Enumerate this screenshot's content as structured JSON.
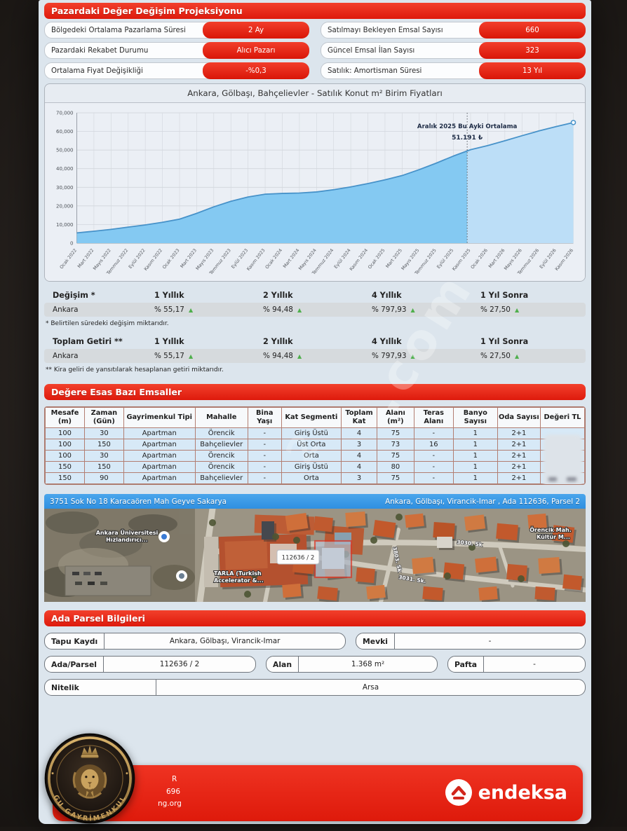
{
  "section1": {
    "title": "Pazardaki Değer Değişim Projeksiyonu",
    "stats": [
      {
        "label": "Bölgedeki Ortalama Pazarlama Süresi",
        "value": "2 Ay"
      },
      {
        "label": "Satılmayı Bekleyen Emsal Sayısı",
        "value": "660"
      },
      {
        "label": "Pazardaki Rekabet Durumu",
        "value": "Alıcı Pazarı"
      },
      {
        "label": "Güncel Emsal İlan Sayısı",
        "value": "323"
      },
      {
        "label": "Ortalama Fiyat Değişikliği",
        "value": "-%0,3"
      },
      {
        "label": "Satılık: Amortisman Süresi",
        "value": "13 Yıl"
      }
    ]
  },
  "chart_data": {
    "type": "area",
    "title": "Ankara, Gölbaşı, Bahçelievler - Satılık Konut m² Birim Fiyatları",
    "x": [
      "Ocak 2022",
      "Mart 2022",
      "Mayıs 2022",
      "Temmuz 2022",
      "Eylül 2022",
      "Kasım 2022",
      "Ocak 2023",
      "Mart 2023",
      "Mayıs 2023",
      "Temmuz 2023",
      "Eylül 2023",
      "Kasım 2023",
      "Ocak 2024",
      "Mart 2024",
      "Mayıs 2024",
      "Temmuz 2024",
      "Eylül 2024",
      "Kasım 2024",
      "Ocak 2025",
      "Mart 2025",
      "Mayıs 2025",
      "Temmuz 2025",
      "Eylül 2025",
      "Kasım 2025",
      "Ocak 2026",
      "Mart 2026",
      "Mayıs 2026",
      "Temmuz 2026",
      "Eylül 2026",
      "Kasım 2026"
    ],
    "values": [
      5500,
      6400,
      7400,
      8600,
      9800,
      11200,
      12900,
      16000,
      19500,
      22500,
      24800,
      26300,
      26700,
      26900,
      27500,
      28700,
      30200,
      32000,
      34000,
      36300,
      39500,
      43000,
      46800,
      50200,
      52400,
      55000,
      57700,
      60300,
      62600,
      64800
    ],
    "ylim": [
      0,
      70000
    ],
    "yticks": [
      0,
      10000,
      20000,
      30000,
      40000,
      50000,
      60000,
      70000
    ],
    "xlabel": "",
    "ylabel": "",
    "grid": true,
    "legend": "none",
    "annotation": {
      "line1": "Aralık 2025 Bu Ayki Ortalama",
      "line2": "51.191 ₺",
      "x_index": 22.8
    },
    "forecast_from_index": 22.8,
    "colors": {
      "line": "#4792c9",
      "area_hist": "#84c9f2",
      "area_forecast": "#bcdef7"
    }
  },
  "change_tables": [
    {
      "header": "Değişim *",
      "columns": [
        "1 Yıllık",
        "2 Yıllık",
        "4 Yıllık",
        "1 Yıl Sonra"
      ],
      "rows": [
        {
          "name": "Ankara",
          "values": [
            "% 55,17",
            "% 94,48",
            "% 797,93",
            "% 27,50"
          ],
          "trend": "up"
        }
      ],
      "footnote": "* Belirtilen süredeki değişim miktarıdır."
    },
    {
      "header": "Toplam Getiri **",
      "columns": [
        "1 Yıllık",
        "2 Yıllık",
        "4 Yıllık",
        "1 Yıl Sonra"
      ],
      "rows": [
        {
          "name": "Ankara",
          "values": [
            "% 55,17",
            "% 94,48",
            "% 797,93",
            "% 27,50"
          ],
          "trend": "up"
        }
      ],
      "footnote": "** Kira geliri de yansıtılarak hesaplanan getiri miktarıdır."
    }
  ],
  "comparables": {
    "title": "Değere Esas Bazı Emsaller",
    "columns": [
      "Mesafe (m)",
      "Zaman (Gün)",
      "Gayrimenkul Tipi",
      "Mahalle",
      "Bina Yaşı",
      "Kat Segmenti",
      "Toplam Kat",
      "Alanı (m²)",
      "Teras Alanı",
      "Banyo Sayısı",
      "Oda Sayısı",
      "Değeri TL"
    ],
    "rows": [
      [
        "100",
        "30",
        "Apartman",
        "Örencik",
        "-",
        "Giriş Üstü",
        "4",
        "75",
        "-",
        "1",
        "2+1",
        ""
      ],
      [
        "100",
        "150",
        "Apartman",
        "Bahçelievler",
        "-",
        "Üst Orta",
        "3",
        "73",
        "16",
        "1",
        "2+1",
        ""
      ],
      [
        "100",
        "30",
        "Apartman",
        "Örencik",
        "-",
        "Orta",
        "4",
        "75",
        "-",
        "1",
        "2+1",
        ""
      ],
      [
        "150",
        "150",
        "Apartman",
        "Örencik",
        "-",
        "Giriş Üstü",
        "4",
        "80",
        "-",
        "1",
        "2+1",
        ""
      ],
      [
        "150",
        "90",
        "Apartman",
        "Bahçelievler",
        "-",
        "Orta",
        "3",
        "75",
        "-",
        "1",
        "2+1",
        ""
      ]
    ],
    "value_column_state": "blurred"
  },
  "map": {
    "address_left": "3751 Sok No 18 Karacaören Mah Geyve Sakarya",
    "address_right": "Ankara, Gölbaşı, Virancik-Imar , Ada 112636, Parsel 2",
    "labels": {
      "uni1": "Ankara Üniversitesi",
      "uni2": "Hızlandırıcı...",
      "tarla1": "TARLA (Turkish",
      "tarla2": "Accelerator &...",
      "district1": "Örencik Mah.",
      "district2": "Kültür M...",
      "street_a": "3030. Sk",
      "street_b": "3031. Sk.",
      "street_c": "3803. Sk",
      "parcel": "112636 / 2"
    }
  },
  "parcel_info": {
    "title": "Ada Parsel Bilgileri",
    "fields": [
      {
        "label": "Tapu Kaydı",
        "value": "Ankara, Gölbaşı, Virancik-Imar"
      },
      {
        "label": "Mevki",
        "value": "-"
      },
      {
        "label": "Ada/Parsel",
        "value": "112636 / 2"
      },
      {
        "label": "Alan",
        "value": "1.368 m²"
      },
      {
        "label": "Pafta",
        "value": "-"
      },
      {
        "label": "Nitelik",
        "value": "Arsa"
      }
    ]
  },
  "footer": {
    "contact_fragments": [
      "R",
      "696",
      "ng.org"
    ],
    "brand": "endeksa"
  },
  "watermark": {
    "diagonal_fragment": ".com",
    "diagonal_fragment2": "2",
    "emblem_text": "GU GAYRİMENKUL"
  }
}
